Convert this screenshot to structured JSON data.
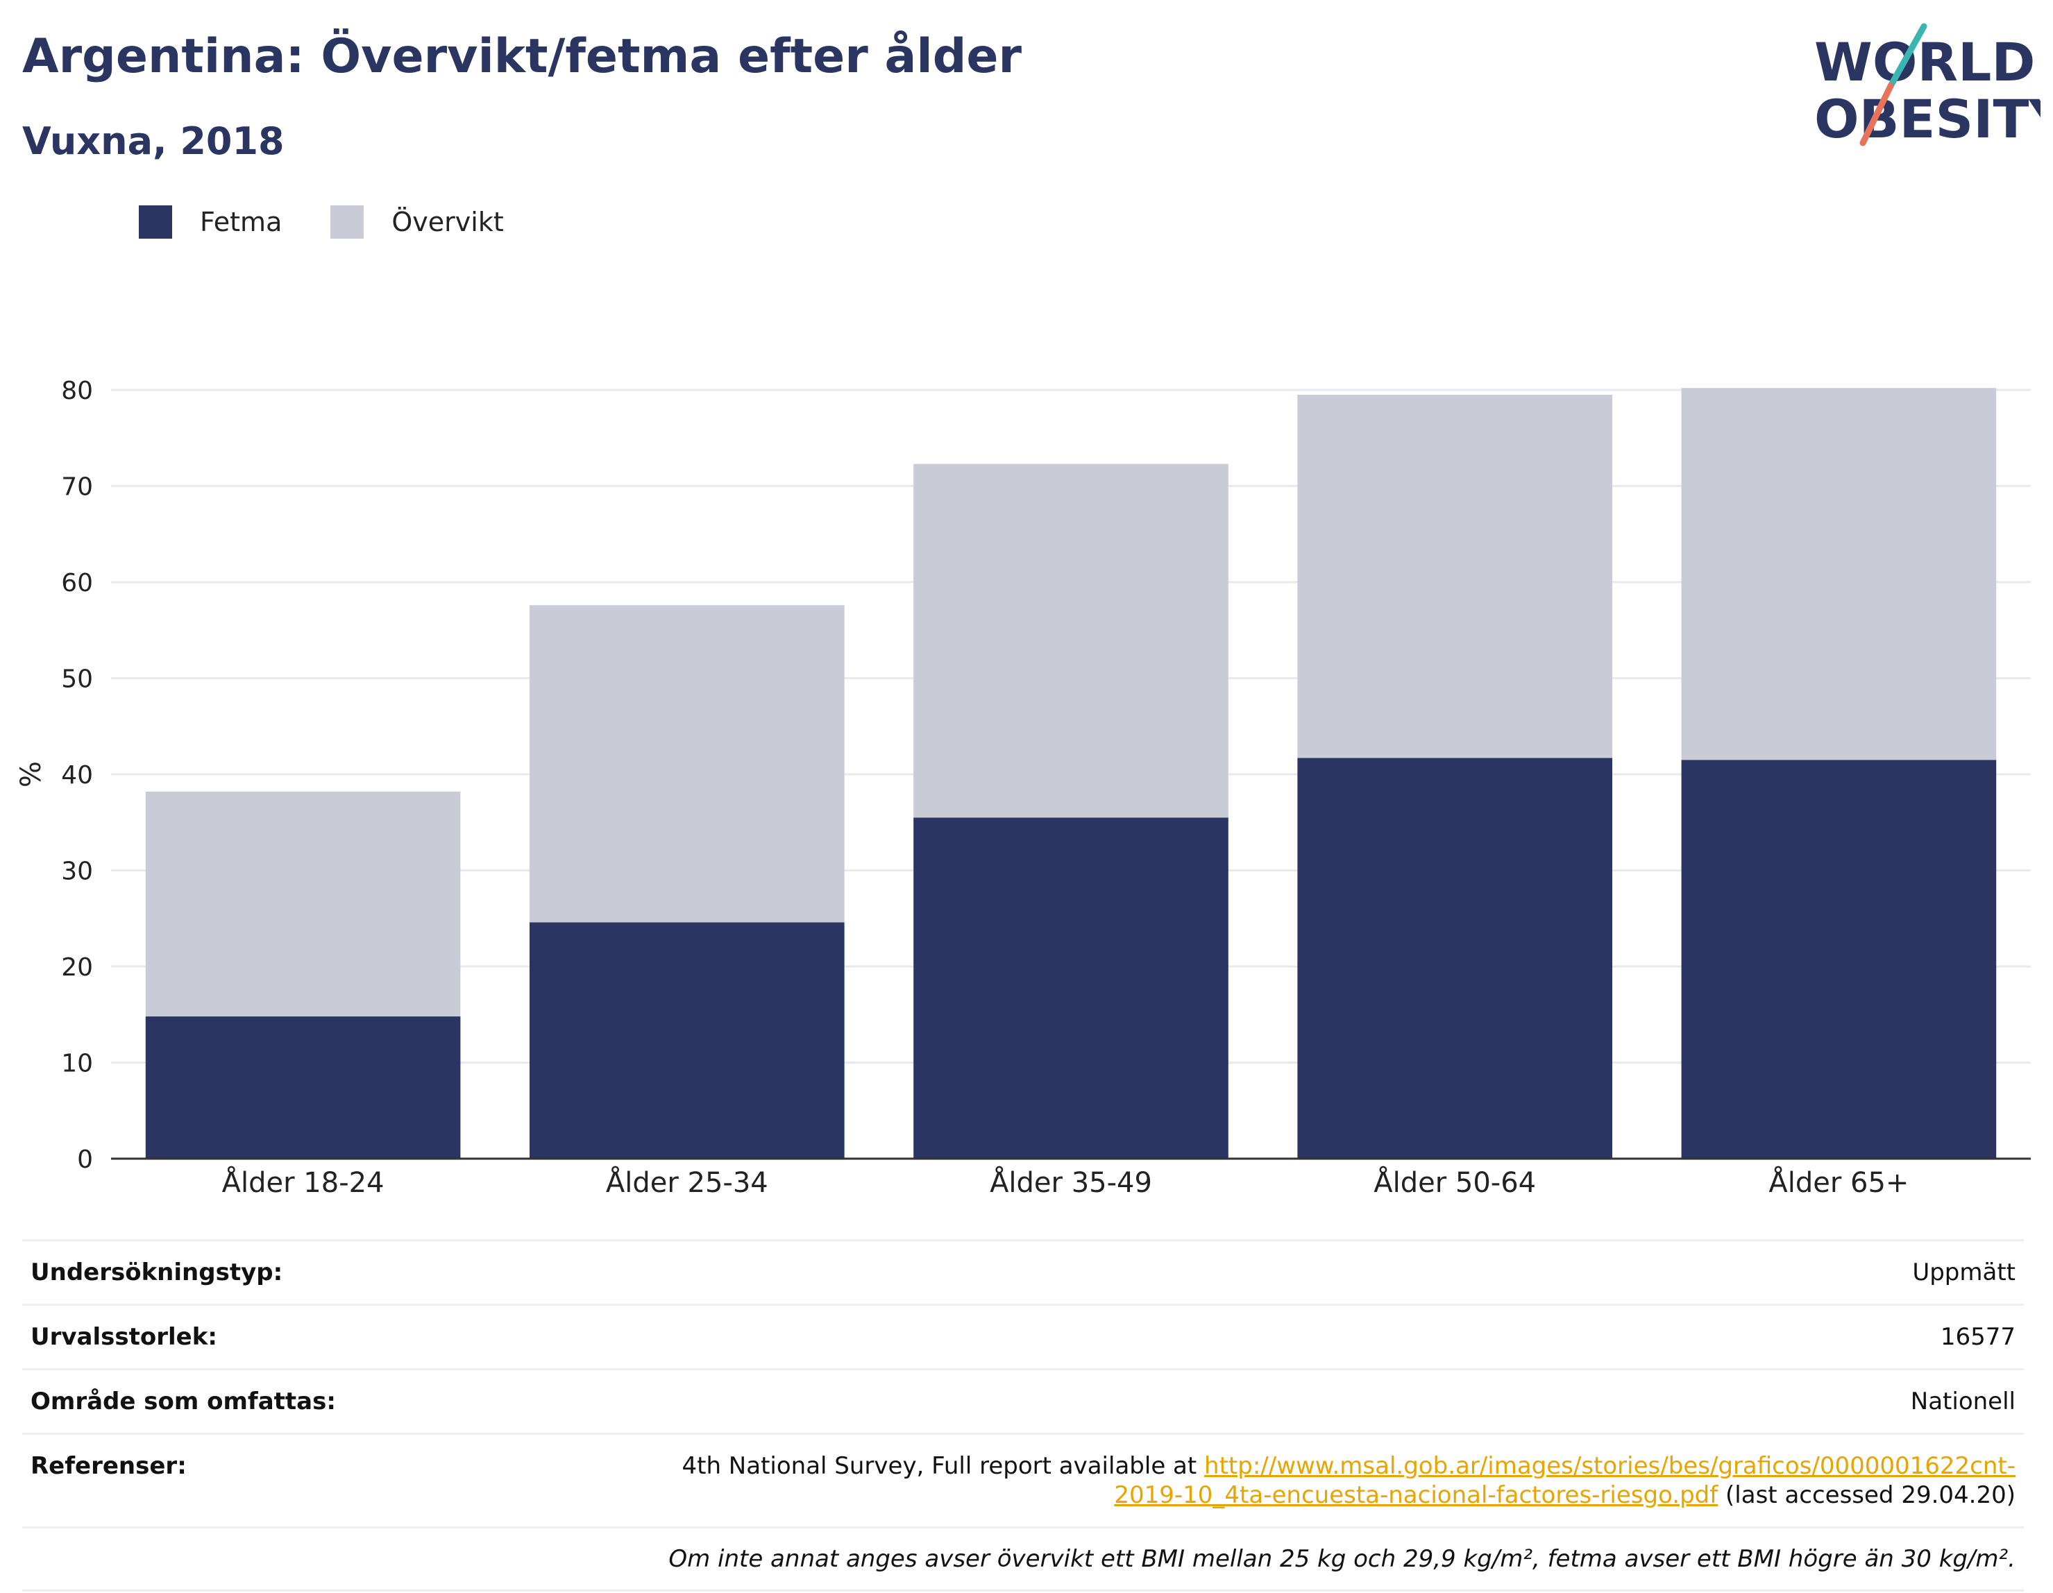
{
  "header": {
    "title": "Argentina: Övervikt/fetma efter ålder",
    "subtitle": "Vuxna, 2018"
  },
  "logo": {
    "line1": "WORLD",
    "line2": "OBESITY"
  },
  "legend": [
    {
      "label": "Fetma",
      "color": "#2a3563"
    },
    {
      "label": "Övervikt",
      "color": "#c9cbd7"
    }
  ],
  "chart_data": {
    "type": "bar",
    "stacked": true,
    "categories": [
      "Ålder 18-24",
      "Ålder 25-34",
      "Ålder 35-49",
      "Ålder 50-64",
      "Ålder 65+"
    ],
    "series": [
      {
        "name": "Fetma",
        "color": "#2a3563",
        "values": [
          14.8,
          24.6,
          35.5,
          41.7,
          41.5
        ]
      },
      {
        "name": "Övervikt",
        "color": "#c9cbd7",
        "values": [
          23.4,
          33.0,
          36.8,
          37.8,
          38.7
        ]
      }
    ],
    "ylabel": "%",
    "ylim": [
      0,
      80
    ],
    "yticks": [
      "0",
      "10",
      "20",
      "30",
      "40",
      "50",
      "60",
      "70",
      "80"
    ],
    "grid": true,
    "legend_position": "top-left"
  },
  "info": {
    "rows": [
      {
        "label": "Undersökningstyp:",
        "value": "Uppmätt"
      },
      {
        "label": "Urvalsstorlek:",
        "value": "16577"
      },
      {
        "label": "Område som omfattas:",
        "value": "Nationell"
      }
    ],
    "references": {
      "label": "Referenser:",
      "prefix": "4th National Survey, Full report available at ",
      "link": "http://www.msal.gob.ar/images/stories/bes/graficos/0000001622cnt-2019-10_4ta-encuesta-nacional-factores-riesgo.pdf",
      "suffix": " (last accessed 29.04.20)"
    },
    "note": "Om inte annat anges avser övervikt ett BMI mellan 25 kg och 29,9 kg/m², fetma avser ett BMI högre än 30 kg/m²."
  }
}
